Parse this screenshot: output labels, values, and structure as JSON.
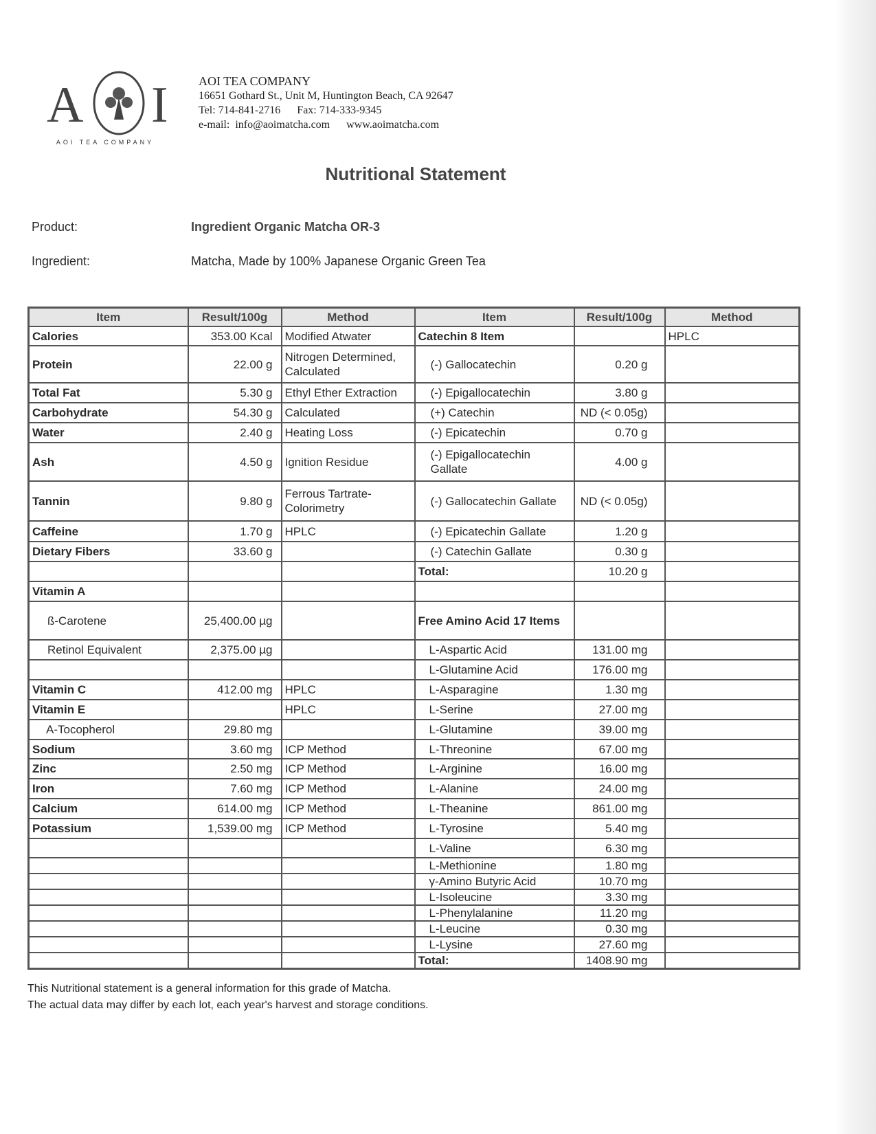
{
  "header": {
    "logo_text": "AOI",
    "logo_tagline": "AOI TEA COMPANY",
    "company_name": "AOI TEA COMPANY",
    "address": "16651 Gothard St., Unit M, Huntington Beach, CA 92647",
    "phone_fax": "Tel: 714-841-2716      Fax: 714-333-9345",
    "email_web": "e-mail:  info@aoimatcha.com      www.aoimatcha.com"
  },
  "title": "Nutritional Statement",
  "product": {
    "label": "Product:",
    "value": "Ingredient Organic Matcha OR-3"
  },
  "ingredient": {
    "label": "Ingredient:",
    "value": "Matcha, Made by 100% Japanese Organic Green Tea"
  },
  "table": {
    "headers": [
      "Item",
      "Result/100g",
      "Method",
      "Item",
      "Result/100g",
      "Method"
    ],
    "rows": [
      [
        "Calories",
        "353.00 Kcal",
        "Modified Atwater",
        "Catechin 8 Item",
        "",
        "HPLC"
      ],
      [
        "Protein",
        "22.00 g",
        "Nitrogen Determined, Calculated",
        "(-)  Gallocatechin",
        "0.20 g",
        ""
      ],
      [
        "Total Fat",
        "5.30 g",
        "Ethyl Ether Extraction",
        "(-)  Epigallocatechin",
        "3.80 g",
        ""
      ],
      [
        "Carbohydrate",
        "54.30 g",
        "Calculated",
        "(+) Catechin",
        "ND (< 0.05g)",
        ""
      ],
      [
        "Water",
        "2.40 g",
        "Heating Loss",
        "(-)  Epicatechin",
        "0.70 g",
        ""
      ],
      [
        "Ash",
        "4.50 g",
        "Ignition Residue",
        "(-)  Epigallocatechin Gallate",
        "4.00 g",
        ""
      ],
      [
        "Tannin",
        "9.80 g",
        "Ferrous Tartrate-Colorimetry",
        "(-)  Gallocatechin Gallate",
        "ND (< 0.05g)",
        ""
      ],
      [
        "Caffeine",
        "1.70 g",
        "HPLC",
        "(-)  Epicatechin Gallate",
        "1.20 g",
        ""
      ],
      [
        "Dietary Fibers",
        "33.60 g",
        "",
        "(-)  Catechin Gallate",
        "0.30 g",
        ""
      ],
      [
        "",
        "",
        "",
        "Total:",
        "10.20 g",
        ""
      ],
      [
        "Vitamin A",
        "",
        "",
        "",
        "",
        ""
      ],
      [
        "ß-Carotene",
        "25,400.00 µg",
        "",
        "Free Amino Acid 17 Items",
        "",
        ""
      ],
      [
        "Retinol Equivalent",
        "2,375.00 µg",
        "",
        "L-Aspartic Acid",
        "131.00 mg",
        ""
      ],
      [
        "",
        "",
        "",
        "L-Glutamine Acid",
        "176.00 mg",
        ""
      ],
      [
        "Vitamin C",
        "412.00 mg",
        "HPLC",
        "L-Asparagine",
        "1.30 mg",
        ""
      ],
      [
        "Vitamin E",
        "",
        "HPLC",
        "L-Serine",
        "27.00 mg",
        ""
      ],
      [
        "A-Tocopherol",
        "29.80 mg",
        "",
        "L-Glutamine",
        "39.00 mg",
        ""
      ],
      [
        "Sodium",
        "3.60 mg",
        "ICP Method",
        "L-Threonine",
        "67.00 mg",
        ""
      ],
      [
        "Zinc",
        "2.50 mg",
        "ICP Method",
        "L-Arginine",
        "16.00 mg",
        ""
      ],
      [
        "Iron",
        "7.60 mg",
        "ICP Method",
        "L-Alanine",
        "24.00 mg",
        ""
      ],
      [
        "Calcium",
        "614.00 mg",
        "ICP Method",
        "L-Theanine",
        "861.00 mg",
        ""
      ],
      [
        "Potassium",
        "1,539.00 mg",
        "ICP Method",
        "L-Tyrosine",
        "5.40 mg",
        ""
      ],
      [
        "",
        "",
        "",
        "L-Valine",
        "6.30 mg",
        ""
      ],
      [
        "",
        "",
        "",
        "L-Methionine",
        "1.80 mg",
        ""
      ],
      [
        "",
        "",
        "",
        "γ-Amino Butyric Acid",
        "10.70 mg",
        ""
      ],
      [
        "",
        "",
        "",
        "L-Isoleucine",
        "3.30 mg",
        ""
      ],
      [
        "",
        "",
        "",
        "L-Phenylalanine",
        "11.20 mg",
        ""
      ],
      [
        "",
        "",
        "",
        "L-Leucine",
        "0.30 mg",
        ""
      ],
      [
        "",
        "",
        "",
        "L-Lysine",
        "27.60 mg",
        ""
      ],
      [
        "",
        "",
        "",
        "Total:",
        "1408.90 mg",
        ""
      ]
    ]
  },
  "footer": [
    "This Nutritional statement is a general information for this grade of Matcha.",
    "The actual data may differ by each lot, each year's harvest and storage conditions."
  ]
}
